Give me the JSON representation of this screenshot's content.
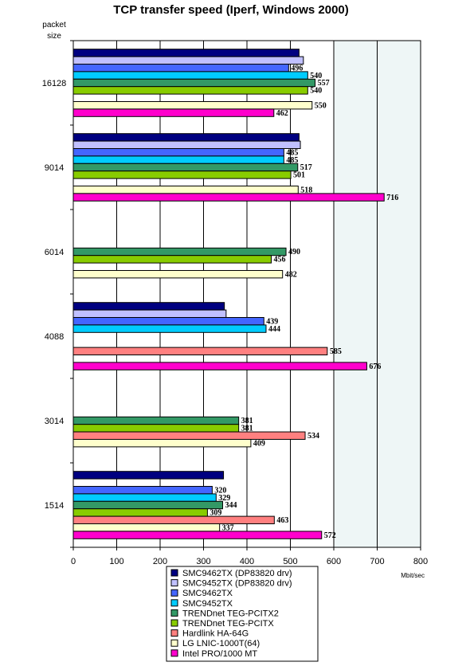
{
  "chart_data": {
    "type": "bar",
    "orientation": "horizontal",
    "title": "TCP transfer speed (Iperf, Windows 2000)",
    "ylabel_line1": "packet",
    "ylabel_line2": "size",
    "xlabel": "Mbit/sec",
    "xlim": [
      0,
      800
    ],
    "xticks": [
      "0",
      "100",
      "200",
      "300",
      "400",
      "500",
      "600",
      "700",
      "800"
    ],
    "grid": true,
    "legend_position": "bottom",
    "categories": [
      "16128",
      "9014",
      "6014",
      "4088",
      "3014",
      "1514"
    ],
    "series": [
      {
        "name": "SMC9462TX (DP83820 drv)",
        "color": "#000080",
        "values": [
          520,
          520,
          null,
          348,
          null,
          346
        ],
        "labels": [
          null,
          null,
          null,
          null,
          null,
          null
        ]
      },
      {
        "name": "SMC9452TX (DP83820 drv)",
        "color": "#c0c0ff",
        "values": [
          530,
          523,
          null,
          352,
          null,
          null
        ],
        "labels": [
          null,
          null,
          null,
          null,
          null,
          null
        ]
      },
      {
        "name": "SMC9462TX",
        "color": "#4466ff",
        "values": [
          496,
          485,
          null,
          439,
          null,
          320
        ],
        "labels": [
          "496",
          "485",
          null,
          "439",
          null,
          "320"
        ]
      },
      {
        "name": "SMC9452TX",
        "color": "#00ccff",
        "values": [
          540,
          485,
          null,
          444,
          null,
          329
        ],
        "labels": [
          "540",
          "485",
          null,
          "444",
          null,
          "329"
        ]
      },
      {
        "name": "TRENDnet TEG-PCITX2",
        "color": "#339966",
        "values": [
          557,
          517,
          490,
          null,
          381,
          344
        ],
        "labels": [
          "557",
          "517",
          "490",
          null,
          "381",
          "344"
        ]
      },
      {
        "name": "TRENDnet TEG-PCITX",
        "color": "#88cc00",
        "values": [
          540,
          501,
          456,
          null,
          381,
          309
        ],
        "labels": [
          "540",
          "501",
          "456",
          null,
          "381",
          "309"
        ]
      },
      {
        "name": "Hardlink HA-64G",
        "color": "#ff8080",
        "values": [
          null,
          null,
          null,
          585,
          534,
          463
        ],
        "labels": [
          null,
          null,
          null,
          "585",
          "534",
          "463"
        ]
      },
      {
        "name": "LG LNIC-1000T(64)",
        "color": "#ffffcc",
        "values": [
          550,
          518,
          482,
          null,
          409,
          337
        ],
        "labels": [
          "550",
          "518",
          "482",
          null,
          "409",
          "337"
        ]
      },
      {
        "name": "Intel PRO/1000 MT",
        "color": "#ff00cc",
        "values": [
          462,
          716,
          null,
          676,
          null,
          572
        ],
        "labels": [
          "462",
          "716",
          null,
          "676",
          null,
          "572"
        ]
      }
    ]
  }
}
